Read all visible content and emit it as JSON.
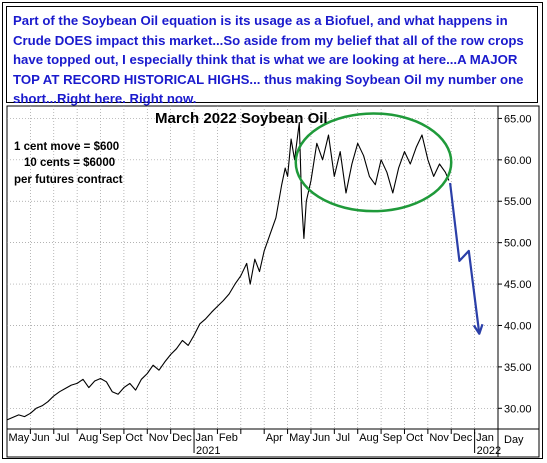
{
  "banner_text": "Part of the Soybean Oil equation is its usage as a Biofuel, and what happens in Crude DOES impact this market...So aside from my belief that all of the row crops have topped out, I especially think that is what we are looking at here...A MAJOR TOP AT RECORD HISTORICAL HIGHS... thus making Soybean Oil my number one short...Right here. Right now.",
  "notes": [
    "1 cent move = $600",
    "10 cents = $6000",
    "per futures contract"
  ],
  "colors": {
    "price": "#000000",
    "projection": "#2b3fa8",
    "top_ellipse": "#1f9a3a",
    "banner_text": "#1a1acd",
    "grid": "#9a9a9a"
  },
  "chart_data": {
    "type": "line",
    "title": "March 2022 Soybean Oil",
    "xlabel": "Day",
    "ylabel": "",
    "ylim": [
      27.5,
      66.5
    ],
    "yticks": [
      30.0,
      35.0,
      40.0,
      45.0,
      50.0,
      55.0,
      60.0,
      65.0
    ],
    "ytick_labels": [
      "30.00",
      "35.00",
      "40.00",
      "45.00",
      "50.00",
      "55.00",
      "60.00",
      "65.00"
    ],
    "months": [
      "May",
      "Jun",
      "Jul",
      "Aug",
      "Sep",
      "Oct",
      "Nov",
      "Dec",
      "Jan",
      "Feb",
      "Mar",
      "Apr",
      "May",
      "Jun",
      "Jul",
      "Aug",
      "Sep",
      "Oct",
      "Nov",
      "Dec",
      "Jan"
    ],
    "month_labels": [
      "May",
      "Jun",
      "Jul",
      "Aug",
      "Sep",
      "Oct",
      "Nov",
      "Dec",
      "Jan",
      "Feb",
      "",
      "Apr",
      "May",
      "Jun",
      "Jul",
      "Aug",
      "Sep",
      "Oct",
      "Nov",
      "Dec",
      "Jan"
    ],
    "years": [
      {
        "label": "2021",
        "month_index": 8
      },
      {
        "label": "2022",
        "month_index": 20
      }
    ],
    "grid": true,
    "series": [
      {
        "points": [
          [
            0.0,
            28.6
          ],
          [
            0.25,
            28.9
          ],
          [
            0.5,
            29.2
          ],
          [
            0.75,
            29.0
          ],
          [
            1.0,
            29.4
          ],
          [
            1.25,
            30.0
          ],
          [
            1.5,
            30.3
          ],
          [
            1.75,
            30.8
          ],
          [
            2.0,
            31.5
          ],
          [
            2.25,
            32.0
          ],
          [
            2.5,
            32.4
          ],
          [
            2.75,
            32.8
          ],
          [
            3.0,
            33.0
          ],
          [
            3.25,
            33.5
          ],
          [
            3.5,
            32.5
          ],
          [
            3.75,
            33.3
          ],
          [
            4.0,
            33.6
          ],
          [
            4.25,
            33.2
          ],
          [
            4.5,
            32.0
          ],
          [
            4.75,
            31.7
          ],
          [
            5.0,
            32.5
          ],
          [
            5.25,
            33.0
          ],
          [
            5.5,
            32.2
          ],
          [
            5.75,
            33.5
          ],
          [
            6.0,
            34.2
          ],
          [
            6.25,
            35.2
          ],
          [
            6.5,
            34.6
          ],
          [
            6.75,
            35.6
          ],
          [
            7.0,
            36.5
          ],
          [
            7.25,
            37.2
          ],
          [
            7.5,
            38.2
          ],
          [
            7.75,
            37.6
          ],
          [
            8.0,
            38.8
          ],
          [
            8.25,
            40.2
          ],
          [
            8.5,
            40.8
          ],
          [
            8.75,
            41.6
          ],
          [
            9.0,
            42.3
          ],
          [
            9.25,
            43.0
          ],
          [
            9.5,
            43.8
          ],
          [
            9.75,
            45.0
          ],
          [
            10.0,
            46.0
          ],
          [
            10.25,
            47.5
          ],
          [
            10.4,
            45.0
          ],
          [
            10.6,
            48.0
          ],
          [
            10.8,
            46.5
          ],
          [
            11.0,
            49.0
          ],
          [
            11.25,
            51.0
          ],
          [
            11.5,
            53.0
          ],
          [
            11.75,
            57.0
          ],
          [
            11.9,
            59.0
          ],
          [
            12.0,
            58.0
          ],
          [
            12.15,
            62.5
          ],
          [
            12.3,
            60.0
          ],
          [
            12.5,
            64.5
          ],
          [
            12.6,
            55.0
          ],
          [
            12.7,
            50.5
          ],
          [
            12.8,
            55.0
          ],
          [
            13.0,
            57.5
          ],
          [
            13.25,
            62.0
          ],
          [
            13.5,
            60.0
          ],
          [
            13.75,
            63.0
          ],
          [
            14.0,
            58.0
          ],
          [
            14.25,
            61.0
          ],
          [
            14.5,
            56.0
          ],
          [
            14.75,
            59.5
          ],
          [
            15.0,
            62.0
          ],
          [
            15.25,
            60.5
          ],
          [
            15.5,
            58.0
          ],
          [
            15.75,
            57.0
          ],
          [
            16.0,
            60.0
          ],
          [
            16.25,
            58.5
          ],
          [
            16.5,
            56.0
          ],
          [
            16.75,
            59.0
          ],
          [
            17.0,
            61.0
          ],
          [
            17.25,
            59.5
          ],
          [
            17.5,
            61.5
          ],
          [
            17.75,
            63.0
          ],
          [
            18.0,
            60.0
          ],
          [
            18.25,
            58.0
          ],
          [
            18.5,
            59.5
          ],
          [
            18.75,
            58.5
          ],
          [
            18.9,
            57.5
          ]
        ]
      },
      {
        "name": "",
        "style": "projection",
        "points": [
          [
            18.95,
            57.2
          ],
          [
            19.35,
            47.8
          ],
          [
            19.75,
            49.0
          ],
          [
            20.2,
            39.0
          ]
        ]
      }
    ],
    "annotations": [
      {
        "type": "ellipse",
        "label": "",
        "x_range": [
          12.35,
          19.0
        ],
        "y_range": [
          53.8,
          65.6
        ]
      }
    ]
  }
}
